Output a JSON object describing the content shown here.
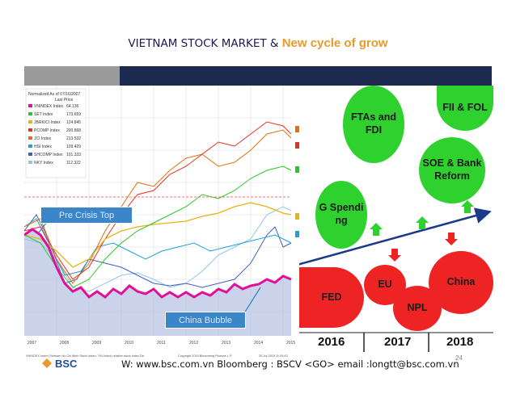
{
  "title": {
    "part1": "VIETNAM STOCK MARKET & ",
    "part2": "New cycle of grow"
  },
  "chart": {
    "legend_header": "Normalized As of 07/16/2007",
    "legend_sub": "Last Price",
    "legend_items": [
      {
        "name": "VNINDEX Index",
        "value": "64.136",
        "color": "#e0109a"
      },
      {
        "name": "SET Index",
        "value": "173.659",
        "color": "#29c829"
      },
      {
        "name": "JBRK/CI Index",
        "value": "124.845",
        "color": "#e8b410"
      },
      {
        "name": "PCOMP Index",
        "value": "200.868",
        "color": "#e83020"
      },
      {
        "name": "JCI Index",
        "value": "213.532",
        "color": "#e07010"
      },
      {
        "name": "HSI Index",
        "value": "109.429",
        "color": "#20a0d8"
      },
      {
        "name": "SHCOMP Index",
        "value": "101.333",
        "color": "#4060c0"
      },
      {
        "name": "NKY Index",
        "value": "112.322",
        "color": "#8fc8e8"
      }
    ],
    "x_ticks": [
      "2007",
      "2008",
      "2009",
      "2010",
      "2011",
      "2012",
      "2013",
      "2014",
      "2015"
    ],
    "callout_pre_crisis": "Pre Crisis Top",
    "callout_china": "China Bubble",
    "source_line": "VNINDEX Index (Vietnam Ho Chi Minh Stock Index / VN-Index) relative stock index  Da",
    "copyright": "Copyright 2015 Bloomberg Finance L.P.",
    "date_stamp": "20-Jul-2015 11:09:43"
  },
  "factors": {
    "ftas": "FTAs and FDI",
    "fii": "FII & FOL",
    "soe": "SOE & Bank Reform",
    "g_spending": "G Spendi ng",
    "fed": "FED",
    "eu": "EU",
    "npl": "NPL",
    "china": "China"
  },
  "years": [
    "2016",
    "2017",
    "2018"
  ],
  "page_number": "24",
  "footer": "W: www.bsc.com.vn Bloomberg : BSCV <GO>  email :longtt@bsc.com.vn",
  "logo_text": "BSC",
  "colors": {
    "accent_orange": "#e89a2a",
    "navy": "#1c2a4f",
    "green": "#2fd12f",
    "red": "#ee2424",
    "vnindex_magenta": "#e0109a"
  }
}
